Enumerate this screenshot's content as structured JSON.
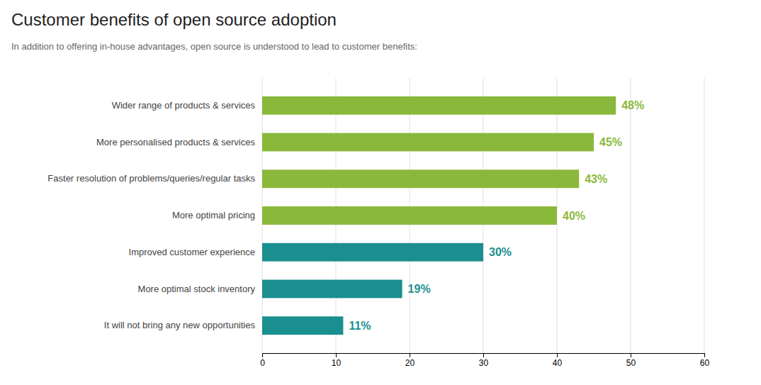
{
  "chart_data": {
    "type": "bar",
    "orientation": "horizontal",
    "title": "Customer benefits of open source adoption",
    "subtitle": "In addition to offering in-house advantages, open source is understood to lead to customer benefits:",
    "categories": [
      "Wider range of products & services",
      "More personalised products & services",
      "Faster resolution of problems/queries/regular tasks",
      "More optimal pricing",
      "Improved customer experience",
      "More optimal stock inventory",
      "It will not bring any new opportunities"
    ],
    "values": [
      48,
      45,
      43,
      40,
      30,
      19,
      11
    ],
    "value_labels": [
      "48%",
      "45%",
      "43%",
      "40%",
      "30%",
      "19%",
      "11%"
    ],
    "colors": [
      "#8ab83a",
      "#8ab83a",
      "#8ab83a",
      "#8ab83a",
      "#1a8f8f",
      "#1a8f8f",
      "#1a8f8f"
    ],
    "xlim": [
      0,
      60
    ],
    "xticks": [
      0,
      10,
      20,
      30,
      40,
      50,
      60
    ],
    "grid": true,
    "data_labels": true
  }
}
